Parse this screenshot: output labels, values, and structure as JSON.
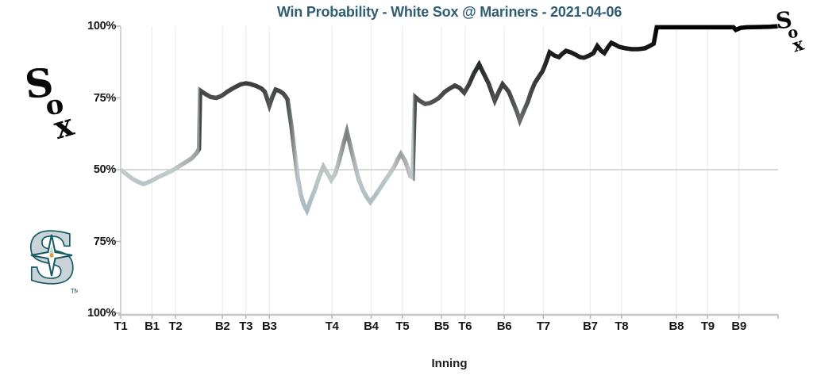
{
  "chart_data": {
    "type": "line",
    "title": "Win Probability - White Sox @ Mariners - 2021-04-06",
    "title_color": "#2f5e73",
    "xlabel": "Inning",
    "matchup": {
      "away_team": "White Sox",
      "home_team": "Mariners",
      "date": "2021-04-06",
      "winner": "White Sox"
    },
    "y_axis": {
      "style": "mirrored",
      "top_meaning": "100% = White Sox win",
      "bottom_meaning": "100% = Mariners win",
      "ticks": [
        {
          "label": "100%",
          "wp": 100
        },
        {
          "label": "75%",
          "wp": 75
        },
        {
          "label": "50%",
          "wp": 50
        },
        {
          "label": "75%",
          "wp": 25
        },
        {
          "label": "100%",
          "wp": 0
        }
      ]
    },
    "innings": [
      {
        "label": "T1",
        "start_pa": 0
      },
      {
        "label": "B1",
        "start_pa": 4
      },
      {
        "label": "T2",
        "start_pa": 7
      },
      {
        "label": "B2",
        "start_pa": 13
      },
      {
        "label": "T3",
        "start_pa": 16
      },
      {
        "label": "B3",
        "start_pa": 19
      },
      {
        "label": "T4",
        "start_pa": 27
      },
      {
        "label": "B4",
        "start_pa": 32
      },
      {
        "label": "T5",
        "start_pa": 36
      },
      {
        "label": "B5",
        "start_pa": 41
      },
      {
        "label": "T6",
        "start_pa": 44
      },
      {
        "label": "B6",
        "start_pa": 49
      },
      {
        "label": "T7",
        "start_pa": 54
      },
      {
        "label": "B7",
        "start_pa": 60
      },
      {
        "label": "T8",
        "start_pa": 64
      },
      {
        "label": "B8",
        "start_pa": 71
      },
      {
        "label": "T9",
        "start_pa": 75
      },
      {
        "label": "B9",
        "start_pa": 79
      }
    ],
    "pa_total": 84,
    "line_colors": {
      "neutral_50pct": "#c6cdcc",
      "mariners_low": "#7fa0b5",
      "whitesox_high": "#000000"
    },
    "series": [
      {
        "name": "White Sox win probability",
        "unit": "%",
        "points": [
          [
            0,
            50
          ],
          [
            0.7,
            48.5
          ],
          [
            1.5,
            46.8
          ],
          [
            2.2,
            45.8
          ],
          [
            2.9,
            45
          ],
          [
            3.5,
            45.6
          ],
          [
            4,
            46.2
          ],
          [
            4.8,
            47.4
          ],
          [
            5.6,
            48.4
          ],
          [
            6.3,
            49.3
          ],
          [
            7,
            50.4
          ],
          [
            7.7,
            51.6
          ],
          [
            8.4,
            52.8
          ],
          [
            9.1,
            54
          ],
          [
            9.7,
            55.8
          ],
          [
            10,
            57.2
          ],
          [
            10.15,
            77.6
          ],
          [
            10.8,
            76.4
          ],
          [
            11.5,
            75.3
          ],
          [
            12.2,
            75
          ],
          [
            12.7,
            75.5
          ],
          [
            13,
            75.9
          ],
          [
            13.7,
            77.3
          ],
          [
            14.5,
            78.6
          ],
          [
            15.3,
            79.7
          ],
          [
            16,
            80.1
          ],
          [
            16.6,
            79.8
          ],
          [
            17.3,
            79.2
          ],
          [
            18,
            78.3
          ],
          [
            18.4,
            77.2
          ],
          [
            18.7,
            74.9
          ],
          [
            19,
            72.3
          ],
          [
            19.4,
            75.5
          ],
          [
            19.8,
            77.9
          ],
          [
            20.3,
            77.4
          ],
          [
            20.8,
            76.5
          ],
          [
            21.3,
            74.6
          ],
          [
            21.8,
            65.5
          ],
          [
            22.2,
            56.6
          ],
          [
            22.6,
            47.8
          ],
          [
            23,
            41.4
          ],
          [
            23.4,
            37.8
          ],
          [
            23.8,
            35.7
          ],
          [
            24.3,
            39.5
          ],
          [
            24.9,
            43.6
          ],
          [
            25.4,
            47.8
          ],
          [
            25.9,
            51.1
          ],
          [
            26.4,
            48.9
          ],
          [
            26.9,
            46.4
          ],
          [
            27.4,
            48.6
          ],
          [
            27.9,
            53
          ],
          [
            28.4,
            58.3
          ],
          [
            28.9,
            63.3
          ],
          [
            29.4,
            57.7
          ],
          [
            29.9,
            52.2
          ],
          [
            30.4,
            46.7
          ],
          [
            30.9,
            43.1
          ],
          [
            31.4,
            40.6
          ],
          [
            31.9,
            38.7
          ],
          [
            32.5,
            40.9
          ],
          [
            33.1,
            43.4
          ],
          [
            33.7,
            45.9
          ],
          [
            34.3,
            48.3
          ],
          [
            34.9,
            50.8
          ],
          [
            35.4,
            53.6
          ],
          [
            35.8,
            55.5
          ],
          [
            36.4,
            52.8
          ],
          [
            37,
            47.8
          ],
          [
            37.3,
            47.3
          ],
          [
            37.6,
            75.4
          ],
          [
            38.2,
            74
          ],
          [
            38.9,
            72.9
          ],
          [
            39.5,
            73.2
          ],
          [
            40.1,
            74
          ],
          [
            40.7,
            75.1
          ],
          [
            41.4,
            77.1
          ],
          [
            42,
            78.2
          ],
          [
            42.7,
            79.3
          ],
          [
            43.3,
            78.5
          ],
          [
            43.9,
            76.8
          ],
          [
            44.5,
            79.6
          ],
          [
            45.1,
            83.4
          ],
          [
            45.8,
            86.7
          ],
          [
            46.4,
            83.4
          ],
          [
            47,
            80.1
          ],
          [
            47.4,
            77.1
          ],
          [
            47.8,
            74
          ],
          [
            48.3,
            77.1
          ],
          [
            48.8,
            79.8
          ],
          [
            49.2,
            78.5
          ],
          [
            49.6,
            77.1
          ],
          [
            50.1,
            73.8
          ],
          [
            50.6,
            70.4
          ],
          [
            51,
            67.1
          ],
          [
            51.5,
            70.4
          ],
          [
            52,
            73.5
          ],
          [
            52.4,
            76.8
          ],
          [
            52.9,
            80.1
          ],
          [
            53.4,
            82.3
          ],
          [
            53.9,
            84.3
          ],
          [
            54.3,
            87
          ],
          [
            54.8,
            90.9
          ],
          [
            55.4,
            89.8
          ],
          [
            56,
            89.2
          ],
          [
            56.4,
            90.3
          ],
          [
            56.9,
            91.4
          ],
          [
            57.5,
            90.9
          ],
          [
            58.1,
            90.1
          ],
          [
            58.7,
            89.2
          ],
          [
            59.2,
            89
          ],
          [
            59.9,
            89.8
          ],
          [
            60.4,
            90.6
          ],
          [
            60.9,
            93.1
          ],
          [
            61.4,
            91.4
          ],
          [
            61.8,
            90.6
          ],
          [
            62.3,
            92.8
          ],
          [
            62.7,
            94.2
          ],
          [
            63.3,
            93.4
          ],
          [
            63.7,
            92.8
          ],
          [
            64.5,
            92.3
          ],
          [
            65.3,
            92
          ],
          [
            66.1,
            92
          ],
          [
            67,
            92.3
          ],
          [
            67.6,
            93.1
          ],
          [
            68.1,
            93.9
          ],
          [
            68.5,
            99.6
          ],
          [
            69.5,
            99.6
          ],
          [
            71,
            99.6
          ],
          [
            73,
            99.6
          ],
          [
            75,
            99.6
          ],
          [
            77,
            99.6
          ],
          [
            78.3,
            99.6
          ],
          [
            78.6,
            98.7
          ],
          [
            79.2,
            99.4
          ],
          [
            80,
            99.6
          ],
          [
            81.5,
            99.7
          ],
          [
            83,
            99.8
          ],
          [
            84,
            100
          ]
        ]
      }
    ]
  },
  "logos": {
    "away_name": "Chicago White Sox 'Sox' logo",
    "away_letters": [
      "S",
      "o",
      "x"
    ],
    "home_name": "Seattle Mariners 'S' compass-rose logo",
    "home_letter": "S",
    "home_trademark": "TM",
    "line_end_name": "White Sox logo marking winning team at line end"
  }
}
